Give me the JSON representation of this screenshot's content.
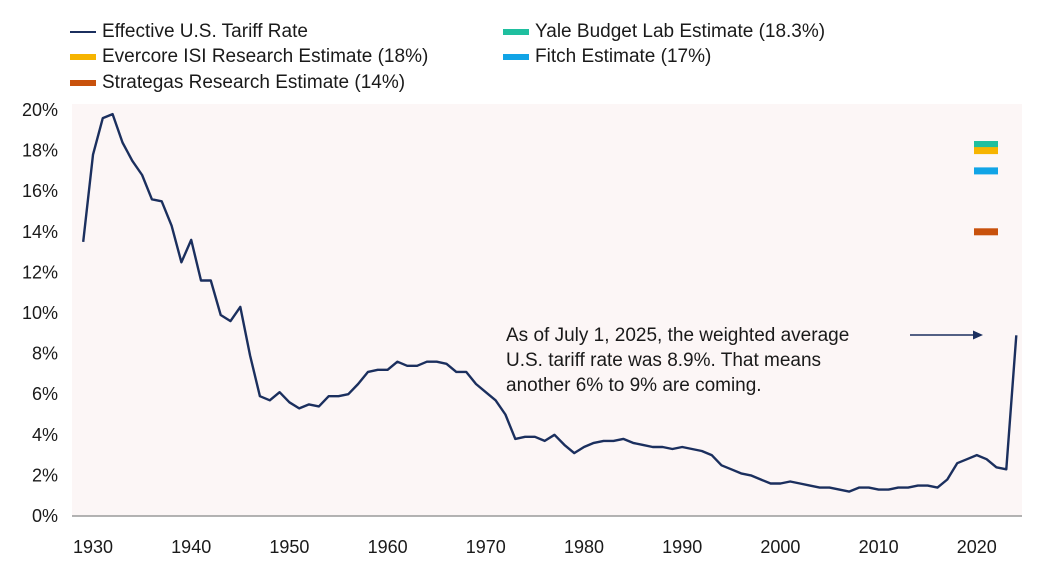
{
  "chart_data": {
    "type": "line",
    "title": "",
    "xlabel": "",
    "ylabel": "",
    "xlim": [
      1928,
      2030
    ],
    "ylim": [
      0,
      20
    ],
    "x_ticks": [
      "1930",
      "1940",
      "1950",
      "1960",
      "1970",
      "1980",
      "1990",
      "2000",
      "2010",
      "2020"
    ],
    "x_tick_values": [
      1930,
      1940,
      1950,
      1960,
      1970,
      1980,
      1990,
      2000,
      2010,
      2020
    ],
    "y_ticks": [
      "0%",
      "2%",
      "4%",
      "6%",
      "8%",
      "10%",
      "12%",
      "14%",
      "16%",
      "18%",
      "20%"
    ],
    "y_tick_values": [
      0,
      2,
      4,
      6,
      8,
      10,
      12,
      14,
      16,
      18,
      20
    ],
    "grid": false,
    "legend_position": "top",
    "series": [
      {
        "name": "Effective U.S. Tariff Rate",
        "color": "#1b2f5e",
        "x": [
          1929,
          1930,
          1931,
          1932,
          1933,
          1934,
          1935,
          1936,
          1937,
          1938,
          1939,
          1940,
          1941,
          1942,
          1943,
          1944,
          1945,
          1946,
          1947,
          1948,
          1949,
          1950,
          1951,
          1952,
          1953,
          1954,
          1955,
          1956,
          1957,
          1958,
          1959,
          1960,
          1961,
          1962,
          1963,
          1964,
          1965,
          1966,
          1967,
          1968,
          1969,
          1970,
          1971,
          1972,
          1973,
          1974,
          1975,
          1976,
          1977,
          1978,
          1979,
          1980,
          1981,
          1982,
          1983,
          1984,
          1985,
          1986,
          1987,
          1988,
          1989,
          1990,
          1991,
          1992,
          1993,
          1994,
          1995,
          1996,
          1997,
          1998,
          1999,
          2000,
          2001,
          2002,
          2003,
          2004,
          2005,
          2006,
          2007,
          2008,
          2009,
          2010,
          2011,
          2012,
          2013,
          2014,
          2015,
          2016,
          2017,
          2018,
          2019,
          2020,
          2021,
          2022,
          2023,
          2025
        ],
        "values": [
          13.5,
          17.8,
          19.6,
          19.8,
          18.4,
          17.5,
          16.8,
          15.6,
          15.5,
          14.3,
          12.5,
          13.6,
          11.6,
          11.6,
          9.9,
          9.6,
          10.3,
          7.9,
          5.9,
          5.7,
          6.1,
          5.6,
          5.3,
          5.5,
          5.4,
          5.9,
          5.9,
          6.0,
          6.5,
          7.1,
          7.2,
          7.2,
          7.6,
          7.4,
          7.4,
          7.6,
          7.6,
          7.5,
          7.1,
          7.1,
          6.5,
          6.1,
          5.7,
          5.0,
          3.8,
          3.9,
          3.9,
          3.7,
          4.0,
          3.5,
          3.1,
          3.4,
          3.6,
          3.7,
          3.7,
          3.8,
          3.6,
          3.5,
          3.4,
          3.4,
          3.3,
          3.4,
          3.3,
          3.2,
          3.0,
          2.5,
          2.3,
          2.1,
          2.0,
          1.8,
          1.6,
          1.6,
          1.7,
          1.6,
          1.5,
          1.4,
          1.4,
          1.3,
          1.2,
          1.4,
          1.4,
          1.3,
          1.3,
          1.4,
          1.4,
          1.5,
          1.5,
          1.4,
          1.8,
          2.6,
          2.8,
          3.0,
          2.8,
          2.4,
          2.3,
          8.9
        ]
      }
    ],
    "estimates": [
      {
        "name": "Yale Budget Lab Estimate (18.3%)",
        "value": 18.3,
        "color": "#1fbf9f",
        "x": 2026
      },
      {
        "name": "Evercore ISI Research Estimate (18%)",
        "value": 18.0,
        "color": "#f6b400",
        "x": 2026
      },
      {
        "name": "Fitch Estimate (17%)",
        "value": 17.0,
        "color": "#11a4e6",
        "x": 2026
      },
      {
        "name": "Strategas Research Estimate (14%)",
        "value": 14.0,
        "color": "#c8510c",
        "x": 2026
      }
    ],
    "annotation": {
      "lines": [
        "As of July 1, 2025, the weighted average",
        "U.S. tariff rate was 8.9%. That means",
        "another 6% to 9% are coming."
      ],
      "points_to": {
        "x": 2025,
        "y": 8.9
      }
    }
  },
  "legend": {
    "items": [
      {
        "label": "Effective U.S. Tariff Rate",
        "color": "#1b2f5e",
        "kind": "line"
      },
      {
        "label": "Evercore ISI Research Estimate (18%)",
        "color": "#f6b400",
        "kind": "bar"
      },
      {
        "label": "Strategas Research Estimate (14%)",
        "color": "#c8510c",
        "kind": "bar"
      },
      {
        "label": "Yale Budget Lab Estimate (18.3%)",
        "color": "#1fbf9f",
        "kind": "bar"
      },
      {
        "label": "Fitch Estimate (17%)",
        "color": "#11a4e6",
        "kind": "bar"
      }
    ]
  },
  "colors": {
    "plot_background": "#fcf6f6",
    "axis": "#9a9a9a"
  }
}
